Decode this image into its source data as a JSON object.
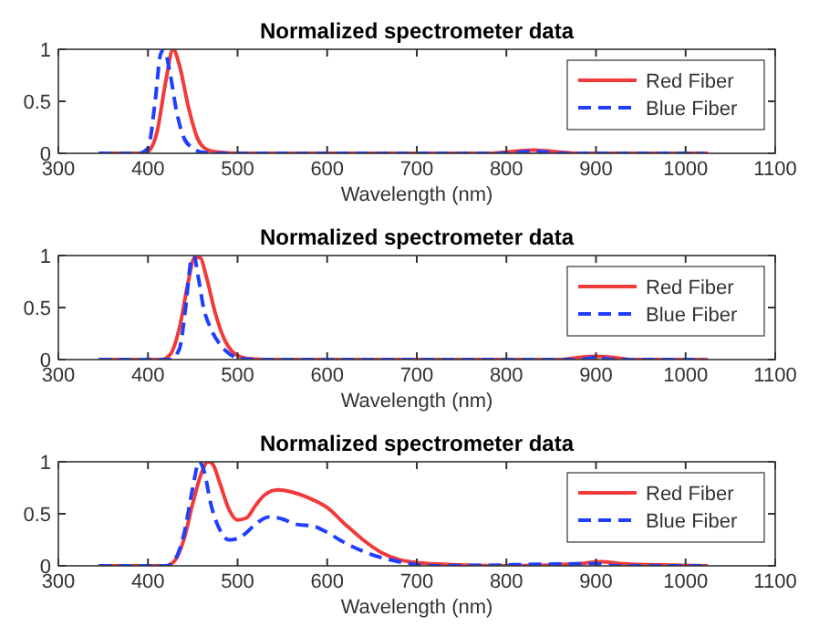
{
  "chart_data": [
    {
      "type": "line",
      "title": "Normalized spectrometer data",
      "xlabel": "Wavelength (nm)",
      "xlim": [
        300,
        1100
      ],
      "ylim": [
        0,
        1
      ],
      "xticks": [
        300,
        400,
        500,
        600,
        700,
        800,
        900,
        1000,
        1100
      ],
      "yticks": [
        0,
        0.5,
        1
      ],
      "legend": "top right",
      "series": [
        {
          "name": "Red Fiber",
          "color": "#f23a3a",
          "line_style": "solid",
          "x": [
            345,
            390,
            400,
            410,
            420,
            428,
            435,
            445,
            455,
            465,
            480,
            500,
            780,
            810,
            830,
            850,
            880,
            1025
          ],
          "values": [
            0,
            0,
            0.02,
            0.2,
            0.7,
            1,
            0.85,
            0.45,
            0.15,
            0.04,
            0.01,
            0,
            0,
            0.02,
            0.03,
            0.02,
            0,
            0
          ]
        },
        {
          "name": "Blue Fiber",
          "color": "#1f3fff",
          "line_style": "dashed",
          "x": [
            345,
            390,
            400,
            408,
            414,
            418,
            424,
            432,
            440,
            450,
            460,
            480,
            800,
            830,
            860,
            1020
          ],
          "values": [
            0,
            0,
            0.05,
            0.5,
            0.95,
            1,
            0.8,
            0.4,
            0.15,
            0.05,
            0.01,
            0,
            0,
            0.02,
            0,
            0
          ]
        }
      ]
    },
    {
      "type": "line",
      "title": "Normalized spectrometer data",
      "xlabel": "Wavelength (nm)",
      "xlim": [
        300,
        1100
      ],
      "ylim": [
        0,
        1
      ],
      "xticks": [
        300,
        400,
        500,
        600,
        700,
        800,
        900,
        1000,
        1100
      ],
      "yticks": [
        0,
        0.5,
        1
      ],
      "legend": "top right",
      "series": [
        {
          "name": "Red Fiber",
          "color": "#f23a3a",
          "line_style": "solid",
          "x": [
            345,
            415,
            425,
            435,
            445,
            452,
            458,
            465,
            475,
            485,
            495,
            510,
            530,
            860,
            880,
            900,
            920,
            940,
            1025
          ],
          "values": [
            0,
            0,
            0.05,
            0.3,
            0.75,
            0.98,
            0.98,
            0.8,
            0.45,
            0.2,
            0.07,
            0.01,
            0,
            0,
            0.02,
            0.03,
            0.02,
            0,
            0
          ]
        },
        {
          "name": "Blue Fiber",
          "color": "#1f3fff",
          "line_style": "dashed",
          "x": [
            345,
            425,
            435,
            442,
            448,
            451,
            456,
            462,
            470,
            480,
            490,
            505,
            520,
            880,
            900,
            920,
            1020
          ],
          "values": [
            0,
            0,
            0.1,
            0.5,
            0.95,
            1,
            0.8,
            0.5,
            0.3,
            0.15,
            0.06,
            0.01,
            0,
            0,
            0.02,
            0,
            0
          ]
        }
      ]
    },
    {
      "type": "line",
      "title": "Normalized spectrometer data",
      "xlabel": "Wavelength (nm)",
      "xlim": [
        300,
        1100
      ],
      "ylim": [
        0,
        1
      ],
      "xticks": [
        300,
        400,
        500,
        600,
        700,
        800,
        900,
        1000,
        1100
      ],
      "yticks": [
        0,
        0.5,
        1
      ],
      "legend": "top right",
      "series": [
        {
          "name": "Red Fiber",
          "color": "#f23a3a",
          "line_style": "solid",
          "x": [
            345,
            420,
            430,
            440,
            450,
            460,
            467,
            472,
            480,
            490,
            500,
            510,
            520,
            530,
            545,
            560,
            580,
            600,
            620,
            640,
            660,
            680,
            700,
            740,
            800,
            880,
            905,
            930,
            960,
            1025
          ],
          "values": [
            0,
            0,
            0.05,
            0.25,
            0.6,
            0.9,
            1,
            0.98,
            0.8,
            0.55,
            0.44,
            0.46,
            0.58,
            0.68,
            0.73,
            0.71,
            0.65,
            0.56,
            0.4,
            0.25,
            0.13,
            0.06,
            0.03,
            0.01,
            0,
            0.02,
            0.04,
            0.02,
            0.01,
            0
          ]
        },
        {
          "name": "Blue Fiber",
          "color": "#1f3fff",
          "line_style": "dashed",
          "x": [
            345,
            420,
            430,
            440,
            450,
            457,
            463,
            470,
            480,
            490,
            500,
            510,
            520,
            535,
            550,
            565,
            585,
            600,
            620,
            640,
            660,
            680,
            700,
            720,
            900,
            920,
            1020
          ],
          "values": [
            0,
            0,
            0.06,
            0.3,
            0.75,
            1,
            0.9,
            0.6,
            0.35,
            0.25,
            0.26,
            0.32,
            0.4,
            0.47,
            0.45,
            0.4,
            0.38,
            0.32,
            0.22,
            0.14,
            0.08,
            0.04,
            0.01,
            0,
            0.02,
            0,
            0
          ]
        }
      ]
    }
  ]
}
